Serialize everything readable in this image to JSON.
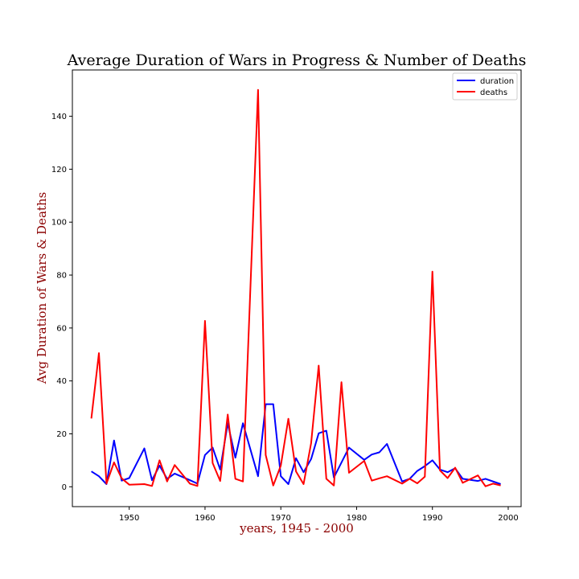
{
  "chart_data": {
    "type": "line",
    "title": "Average Duration of Wars in Progress & Number of Deaths",
    "xlabel": "years, 1945 - 2000",
    "ylabel": "Avg Duration of Wars & Deaths",
    "xlim": [
      1942.5,
      2001.7
    ],
    "ylim": [
      -7.5,
      157.5
    ],
    "xticks": [
      1950,
      1960,
      1970,
      1980,
      1990,
      2000
    ],
    "yticks": [
      0,
      20,
      40,
      60,
      80,
      100,
      120,
      140
    ],
    "grid": false,
    "legend_position": "top-right",
    "series": [
      {
        "name": "duration",
        "color": "#0000ff",
        "x": [
          1945,
          1946,
          1947,
          1948,
          1949,
          1950,
          1952,
          1953,
          1954,
          1955,
          1956,
          1958,
          1959,
          1960,
          1961,
          1962,
          1963,
          1964,
          1965,
          1967,
          1968,
          1969,
          1970,
          1971,
          1972,
          1973,
          1974,
          1975,
          1976,
          1977,
          1979,
          1981,
          1982,
          1983,
          1984,
          1986,
          1987,
          1988,
          1989,
          1990,
          1991,
          1992,
          1993,
          1994,
          1996,
          1997,
          1999
        ],
        "values": [
          5.8,
          4.0,
          1.0,
          17.5,
          2.3,
          3.3,
          14.5,
          2.5,
          8.0,
          3.0,
          5.0,
          2.5,
          1.2,
          12.0,
          14.8,
          6.5,
          24.0,
          11.0,
          24.0,
          4.0,
          31.2,
          31.2,
          4.0,
          1.0,
          10.8,
          5.5,
          10.5,
          20.2,
          21.2,
          3.5,
          14.8,
          10.2,
          12.2,
          13.0,
          16.2,
          2.0,
          3.0,
          6.0,
          7.8,
          10.0,
          6.5,
          5.5,
          7.0,
          3.0,
          2.2,
          3.0,
          1.0
        ]
      },
      {
        "name": "deaths",
        "color": "#ff0000",
        "x": [
          1945,
          1946,
          1947,
          1948,
          1949,
          1950,
          1952,
          1953,
          1954,
          1955,
          1956,
          1958,
          1959,
          1960,
          1961,
          1962,
          1963,
          1964,
          1965,
          1967,
          1968,
          1969,
          1970,
          1971,
          1972,
          1973,
          1974,
          1975,
          1976,
          1977,
          1978,
          1979,
          1981,
          1982,
          1983,
          1984,
          1986,
          1987,
          1988,
          1989,
          1990,
          1991,
          1992,
          1993,
          1994,
          1996,
          1997,
          1998,
          1999
        ],
        "values": [
          25.8,
          50.5,
          1.2,
          9.2,
          3.2,
          0.8,
          1.0,
          0.3,
          10.0,
          2.0,
          8.2,
          1.2,
          0.3,
          62.7,
          9.0,
          2.2,
          27.3,
          3.0,
          2.0,
          150.0,
          12.0,
          0.5,
          8.0,
          25.7,
          5.8,
          1.0,
          16.5,
          45.8,
          3.0,
          0.5,
          39.5,
          5.3,
          9.8,
          2.3,
          3.2,
          4.0,
          1.2,
          3.0,
          1.3,
          3.8,
          81.3,
          6.2,
          3.3,
          7.2,
          1.5,
          4.3,
          0.2,
          1.2,
          0.5
        ]
      }
    ]
  }
}
